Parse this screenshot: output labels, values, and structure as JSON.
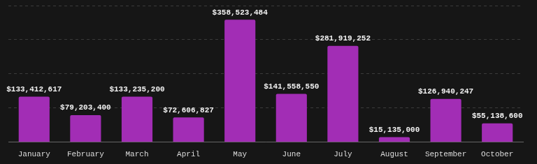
{
  "chart_data": {
    "type": "bar",
    "categories": [
      "January",
      "February",
      "March",
      "April",
      "May",
      "June",
      "July",
      "August",
      "September",
      "October"
    ],
    "values": [
      133412617,
      79203400,
      133235200,
      72606827,
      358523484,
      141558550,
      281919252,
      15135000,
      126940247,
      55138600
    ],
    "value_labels": [
      "$133,412,617",
      "$79,203,400",
      "$133,235,200",
      "$72,606,827",
      "$358,523,484",
      "$141,558,550",
      "$281,919,252",
      "$15,135,000",
      "$126,940,247",
      "$55,138,600"
    ],
    "color": "#a22db5",
    "ylim": [
      0,
      400000000
    ],
    "yticks": [
      0,
      100000000,
      200000000,
      300000000,
      400000000
    ],
    "grid": true,
    "data_labels": true,
    "tick_labels": "x"
  }
}
